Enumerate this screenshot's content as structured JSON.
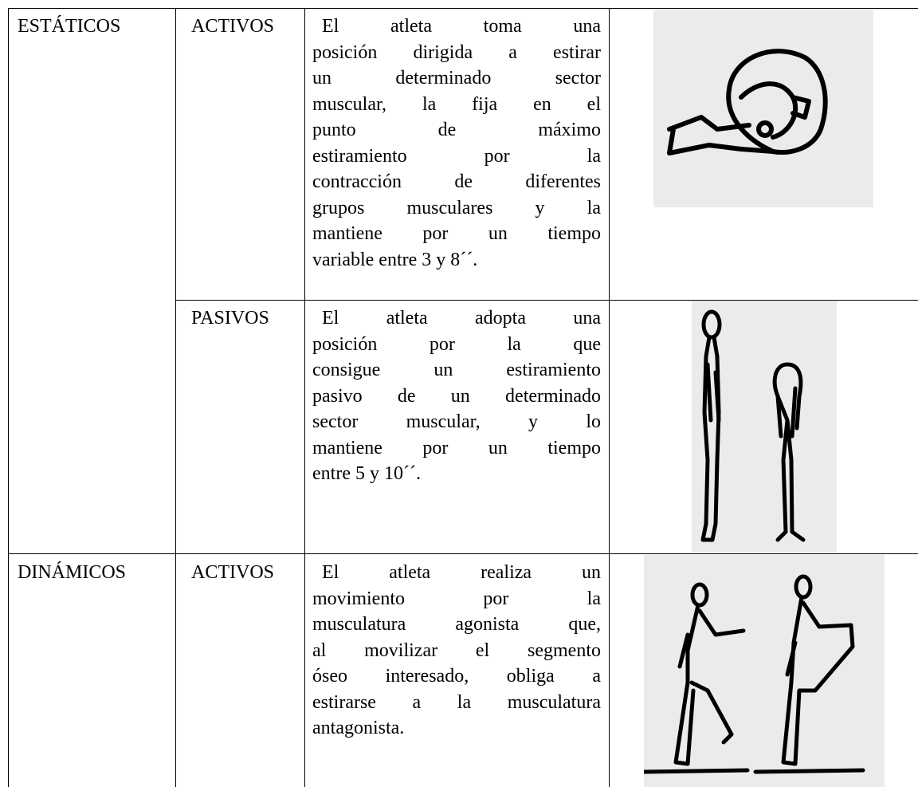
{
  "table": {
    "rows": [
      {
        "category": "ESTÁTICOS",
        "type": "ACTIVOS",
        "description": [
          "El atleta toma una",
          "posición dirigida a estirar",
          "un determinado sector",
          "muscular, la fija en el",
          "punto de máximo",
          "estiramiento por la",
          "contracción de diferentes",
          "grupos musculares y la",
          "mantiene por un tiempo",
          "variable entre 3 y 8´´."
        ]
      },
      {
        "type": "PASIVOS",
        "description": [
          "El atleta adopta una",
          "posición por la que",
          "consigue un estiramiento",
          "pasivo de un determinado",
          "sector muscular, y lo",
          "mantiene por un tiempo",
          "entre 5 y 10´´."
        ]
      },
      {
        "category": "DINÁMICOS",
        "type": "ACTIVOS",
        "description": [
          "El atleta realiza un",
          "movimiento por la",
          "musculatura agonista que,",
          "al movilizar el segmento",
          "óseo interesado, obliga a",
          "estirarse a la musculatura",
          "antagonista."
        ]
      }
    ]
  }
}
